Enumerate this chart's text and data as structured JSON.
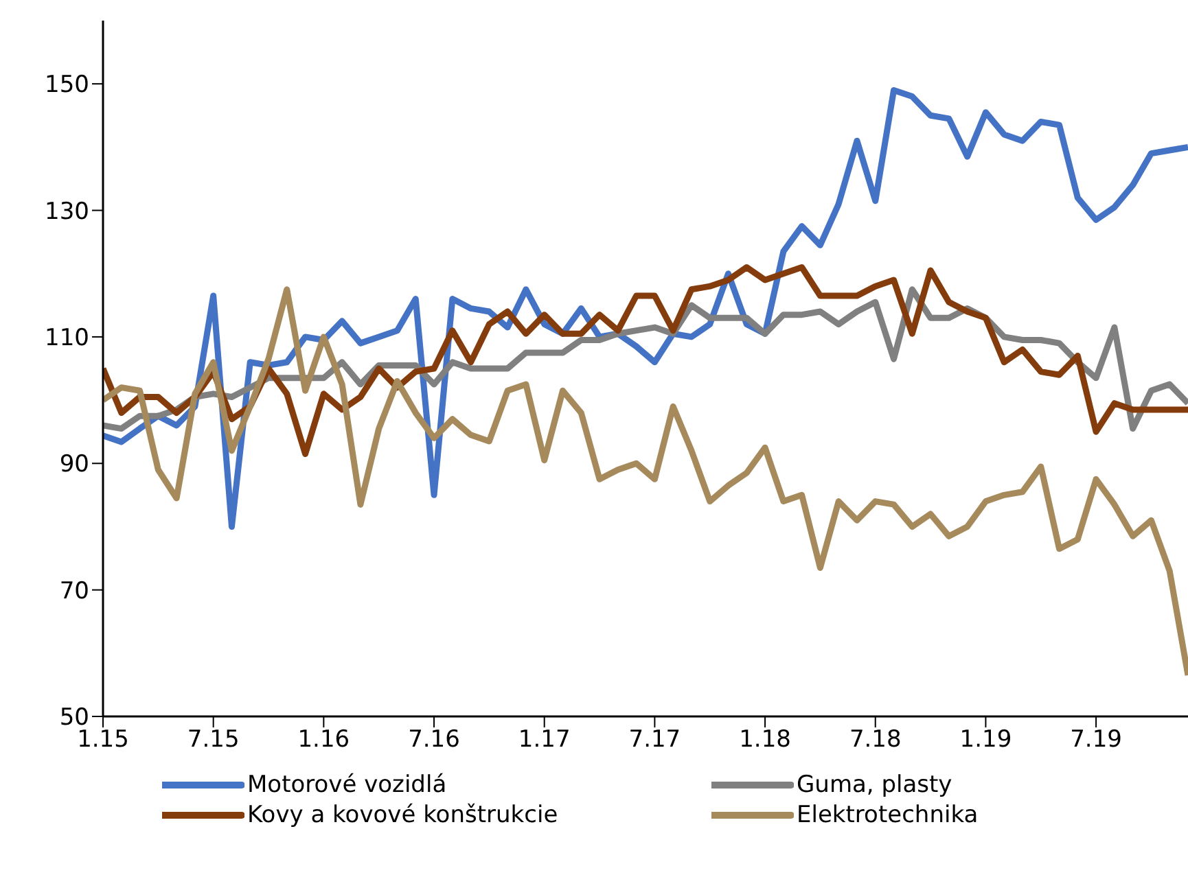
{
  "chart_data": {
    "type": "line",
    "x": [
      "2015-01",
      "2015-02",
      "2015-03",
      "2015-04",
      "2015-05",
      "2015-06",
      "2015-07",
      "2015-08",
      "2015-09",
      "2015-10",
      "2015-11",
      "2015-12",
      "2016-01",
      "2016-02",
      "2016-03",
      "2016-04",
      "2016-05",
      "2016-06",
      "2016-07",
      "2016-08",
      "2016-09",
      "2016-10",
      "2016-11",
      "2016-12",
      "2017-01",
      "2017-02",
      "2017-03",
      "2017-04",
      "2017-05",
      "2017-06",
      "2017-07",
      "2017-08",
      "2017-09",
      "2017-10",
      "2017-11",
      "2017-12",
      "2018-01",
      "2018-02",
      "2018-03",
      "2018-04",
      "2018-05",
      "2018-06",
      "2018-07",
      "2018-08",
      "2018-09",
      "2018-10",
      "2018-11",
      "2018-12",
      "2019-01",
      "2019-02",
      "2019-03",
      "2019-04",
      "2019-05",
      "2019-06",
      "2019-07",
      "2019-08",
      "2019-09",
      "2019-10",
      "2019-11",
      "2019-12"
    ],
    "series": [
      {
        "name": "Motorové vozidlá",
        "color": "#4472c4",
        "values": [
          94.4,
          93.4,
          95.5,
          97.5,
          96,
          99,
          116.5,
          80,
          106,
          105.5,
          106,
          110,
          109.5,
          112.5,
          109,
          110,
          111,
          116,
          85,
          116,
          114.5,
          114,
          111.5,
          117.5,
          112,
          110.5,
          114.5,
          110,
          110.5,
          108.5,
          106,
          110.5,
          110,
          112,
          120,
          112,
          110.5,
          123.5,
          127.5,
          124.5,
          131,
          141,
          131.5,
          149,
          148,
          145,
          144.5,
          138.5,
          145.5,
          142,
          141,
          144,
          143.5,
          132,
          128.5,
          130.5,
          134,
          139,
          139.5,
          140
        ]
      },
      {
        "name": "Guma, plasty",
        "color": "#808080",
        "values": [
          96,
          95.5,
          97.5,
          97.5,
          98.5,
          100.5,
          101,
          100.5,
          102,
          103.5,
          103.5,
          103.5,
          103.5,
          106,
          102.5,
          105.5,
          105.5,
          105.5,
          102.5,
          106,
          105,
          105,
          105,
          107.5,
          107.5,
          107.5,
          109.5,
          109.5,
          110.5,
          111,
          111.5,
          110.5,
          115,
          113,
          113,
          113,
          110.5,
          113.5,
          113.5,
          114,
          112,
          114,
          115.5,
          106.5,
          117.5,
          113,
          113,
          114.5,
          113,
          110,
          109.5,
          109.5,
          109,
          106,
          103.5,
          111.5,
          95.5,
          101.5,
          102.5,
          99.5
        ]
      },
      {
        "name": "Kovy a kovové konštrukcie",
        "color": "#843c0c",
        "values": [
          105,
          98,
          100.5,
          100.5,
          98,
          100.5,
          104.5,
          97,
          99,
          105,
          101,
          91.5,
          101,
          98.5,
          100.5,
          105,
          102,
          104.5,
          105,
          111,
          106,
          112,
          114,
          110.5,
          113.5,
          110.5,
          110.5,
          113.5,
          111,
          116.5,
          116.5,
          111,
          117.5,
          118,
          119,
          121,
          119,
          120,
          121,
          116.5,
          116.5,
          116.5,
          118,
          119,
          110.5,
          120.5,
          115.5,
          114,
          113,
          106,
          108,
          104.5,
          104,
          107,
          95,
          99.5,
          98.5,
          98.5,
          98.5,
          98.5
        ]
      },
      {
        "name": "Elektrotechnika",
        "color": "#a68a5b",
        "values": [
          100,
          102,
          101.5,
          89,
          84.5,
          101,
          106,
          92,
          99,
          106.5,
          117.5,
          101.5,
          110,
          102.5,
          83.5,
          95.5,
          103,
          98,
          94,
          97,
          94.5,
          93.5,
          101.5,
          102.5,
          90.5,
          101.5,
          98,
          87.5,
          89,
          90,
          87.5,
          99,
          92,
          84,
          86.5,
          88.5,
          92.5,
          84,
          85,
          73.5,
          84,
          81,
          84,
          83.5,
          80,
          82,
          78.5,
          80,
          84,
          85,
          85.5,
          89.5,
          76.5,
          78,
          87.5,
          83.5,
          78.5,
          81,
          73,
          56.5
        ]
      }
    ],
    "xlim": [
      "2015-01",
      "2019-12"
    ],
    "xticks": [
      {
        "value": "2015-01",
        "label": "1.15"
      },
      {
        "value": "2015-07",
        "label": "7.15"
      },
      {
        "value": "2016-01",
        "label": "1.16"
      },
      {
        "value": "2016-07",
        "label": "7.16"
      },
      {
        "value": "2017-01",
        "label": "1.17"
      },
      {
        "value": "2017-07",
        "label": "7.17"
      },
      {
        "value": "2018-01",
        "label": "1.18"
      },
      {
        "value": "2018-07",
        "label": "7.18"
      },
      {
        "value": "2019-01",
        "label": "1.19"
      },
      {
        "value": "2019-07",
        "label": "7.19"
      }
    ],
    "ylim": [
      50,
      160
    ],
    "yticks": [
      50,
      70,
      90,
      110,
      130,
      150
    ],
    "grid": false,
    "legend": "bottom",
    "marker": "none",
    "line_style": "solid"
  }
}
